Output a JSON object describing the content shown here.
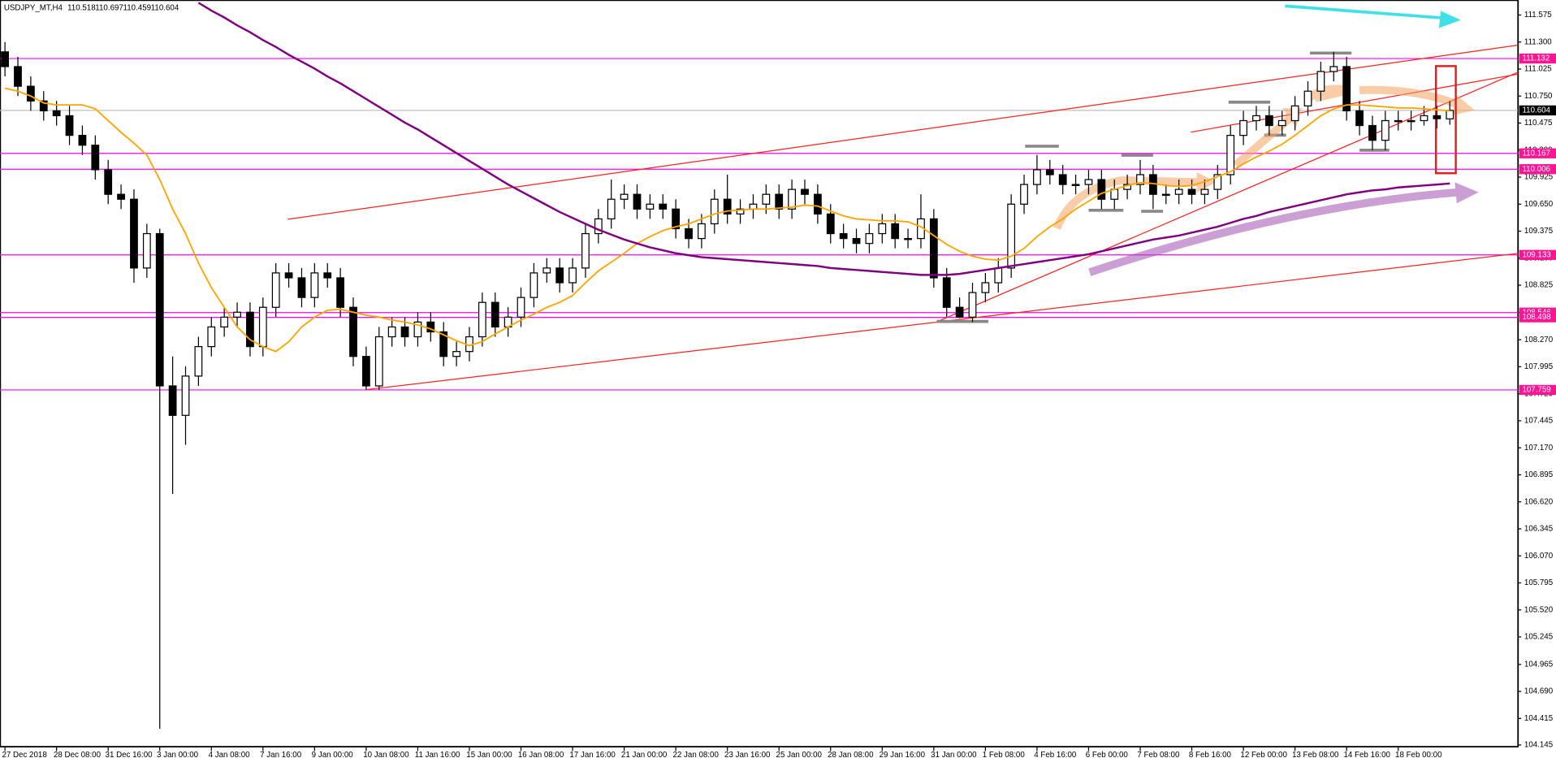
{
  "chart_data": {
    "type": "candlestick",
    "title": "USDJPY_MT,H4",
    "categories": [
      "27 Dec 2018",
      null,
      null,
      null,
      "28 Dec 08:00",
      null,
      null,
      null,
      "31 Dec 16:00",
      null,
      null,
      null,
      "3 Jan 00:00",
      null,
      null,
      null,
      "4 Jan 08:00",
      null,
      null,
      null,
      "7 Jan 16:00",
      null,
      null,
      null,
      "9 Jan 00:00",
      null,
      null,
      null,
      "10 Jan 08:00",
      null,
      null,
      null,
      "11 Jan 16:00",
      null,
      null,
      null,
      "15 Jan 00:00",
      null,
      null,
      null,
      "16 Jan 08:00",
      null,
      null,
      null,
      "17 Jan 16:00",
      null,
      null,
      null,
      "21 Jan 00:00",
      null,
      null,
      null,
      "22 Jan 08:00",
      null,
      null,
      null,
      "23 Jan 16:00",
      null,
      null,
      null,
      "25 Jan 00:00",
      null,
      null,
      null,
      "28 Jan 08:00",
      null,
      null,
      null,
      "29 Jan 16:00",
      null,
      null,
      null,
      "31 Jan 00:00",
      null,
      null,
      null,
      "1 Feb 08:00",
      null,
      null,
      null,
      "4 Feb 16:00",
      null,
      null,
      null,
      "6 Feb 00:00",
      null,
      null,
      null,
      "7 Feb 08:00",
      null,
      null,
      null,
      "8 Feb 16:00",
      null,
      null,
      null,
      "12 Feb 00:00",
      null,
      null,
      null,
      "13 Feb 08:00",
      null,
      null,
      null,
      "14 Feb 16:00",
      null,
      null,
      null,
      "18 Feb 00:00",
      null,
      null,
      null,
      null
    ],
    "open": [
      111.2,
      111.05,
      110.85,
      110.7,
      110.6,
      110.55,
      110.35,
      110.25,
      110.0,
      109.75,
      109.7,
      109.0,
      109.35,
      107.8,
      107.5,
      107.9,
      108.2,
      108.4,
      108.5,
      108.55,
      108.2,
      108.6,
      108.95,
      108.9,
      108.7,
      108.95,
      108.9,
      108.6,
      108.1,
      107.8,
      108.3,
      108.4,
      108.3,
      108.45,
      108.35,
      108.1,
      108.15,
      108.3,
      108.65,
      108.4,
      108.5,
      108.7,
      108.95,
      109.0,
      108.85,
      109.0,
      109.35,
      109.5,
      109.7,
      109.75,
      109.6,
      109.65,
      109.6,
      109.4,
      109.3,
      109.45,
      109.7,
      109.55,
      109.6,
      109.65,
      109.75,
      109.6,
      109.8,
      109.75,
      109.55,
      109.35,
      109.3,
      109.25,
      109.35,
      109.45,
      109.3,
      109.3,
      109.5,
      108.9,
      108.6,
      108.5,
      108.75,
      108.85,
      109.0,
      109.65,
      109.85,
      110.0,
      109.95,
      109.85,
      109.85,
      109.9,
      109.7,
      109.8,
      109.85,
      109.95,
      109.75,
      109.75,
      109.8,
      109.75,
      109.8,
      109.95,
      110.35,
      110.5,
      110.55,
      110.45,
      110.5,
      110.65,
      110.8,
      111.0,
      111.05,
      110.6,
      110.45,
      110.3,
      110.5,
      110.5,
      110.5,
      110.55,
      110.518
    ],
    "high": [
      111.3,
      111.15,
      110.95,
      110.8,
      110.7,
      110.65,
      110.45,
      110.35,
      110.1,
      109.85,
      109.8,
      109.45,
      109.4,
      108.1,
      108.0,
      108.3,
      108.5,
      108.6,
      108.65,
      108.65,
      108.7,
      109.05,
      109.05,
      109.0,
      109.05,
      109.05,
      109.0,
      108.7,
      108.2,
      108.4,
      108.5,
      108.5,
      108.55,
      108.55,
      108.45,
      108.25,
      108.4,
      108.75,
      108.75,
      108.6,
      108.8,
      109.05,
      109.1,
      109.1,
      109.1,
      109.45,
      109.6,
      109.9,
      109.85,
      109.85,
      109.75,
      109.75,
      109.7,
      109.5,
      109.55,
      109.8,
      109.95,
      109.7,
      109.75,
      109.85,
      109.85,
      109.9,
      109.9,
      109.85,
      109.65,
      109.45,
      109.4,
      109.45,
      109.55,
      109.55,
      109.4,
      109.75,
      109.6,
      109.0,
      108.7,
      108.85,
      108.95,
      109.1,
      109.75,
      109.95,
      110.15,
      110.1,
      110.05,
      109.95,
      110.0,
      110.0,
      109.9,
      109.95,
      110.1,
      110.05,
      109.85,
      109.9,
      109.9,
      109.9,
      110.05,
      110.45,
      110.6,
      110.65,
      110.65,
      110.6,
      110.75,
      110.9,
      111.1,
      111.2,
      111.15,
      110.7,
      110.55,
      110.6,
      110.6,
      110.6,
      110.65,
      110.65,
      110.697
    ],
    "low": [
      110.95,
      110.75,
      110.6,
      110.5,
      110.45,
      110.25,
      110.15,
      109.9,
      109.65,
      109.6,
      108.85,
      108.9,
      104.31,
      106.7,
      107.2,
      107.8,
      108.1,
      108.3,
      108.4,
      108.1,
      108.1,
      108.5,
      108.8,
      108.6,
      108.6,
      108.8,
      108.5,
      108.0,
      107.76,
      107.76,
      108.2,
      108.2,
      108.2,
      108.25,
      108.0,
      108.0,
      108.05,
      108.2,
      108.3,
      108.3,
      108.4,
      108.6,
      108.85,
      108.75,
      108.75,
      108.9,
      109.25,
      109.4,
      109.6,
      109.5,
      109.5,
      109.5,
      109.3,
      109.2,
      109.2,
      109.35,
      109.45,
      109.45,
      109.5,
      109.55,
      109.5,
      109.5,
      109.65,
      109.45,
      109.25,
      109.2,
      109.15,
      109.15,
      109.25,
      109.2,
      109.2,
      109.2,
      108.8,
      108.5,
      108.49,
      108.45,
      108.65,
      108.75,
      108.9,
      109.55,
      109.75,
      109.85,
      109.75,
      109.75,
      109.75,
      109.6,
      109.6,
      109.7,
      109.75,
      109.6,
      109.65,
      109.65,
      109.65,
      109.65,
      109.7,
      109.85,
      110.25,
      110.4,
      110.35,
      110.35,
      110.4,
      110.55,
      110.7,
      110.9,
      110.5,
      110.35,
      110.2,
      110.2,
      110.4,
      110.4,
      110.45,
      110.42,
      110.459
    ],
    "close": [
      111.05,
      110.85,
      110.7,
      110.6,
      110.55,
      110.35,
      110.25,
      110.0,
      109.75,
      109.7,
      109.0,
      109.35,
      107.8,
      107.5,
      107.9,
      108.2,
      108.4,
      108.5,
      108.55,
      108.2,
      108.6,
      108.95,
      108.9,
      108.7,
      108.95,
      108.9,
      108.6,
      108.1,
      107.8,
      108.3,
      108.4,
      108.3,
      108.45,
      108.35,
      108.1,
      108.15,
      108.3,
      108.65,
      108.4,
      108.5,
      108.7,
      108.95,
      109.0,
      108.85,
      109.0,
      109.35,
      109.5,
      109.7,
      109.75,
      109.6,
      109.65,
      109.6,
      109.4,
      109.3,
      109.45,
      109.7,
      109.55,
      109.6,
      109.65,
      109.75,
      109.6,
      109.8,
      109.75,
      109.55,
      109.35,
      109.3,
      109.25,
      109.35,
      109.45,
      109.3,
      109.3,
      109.5,
      108.9,
      108.6,
      108.5,
      108.75,
      108.85,
      109.0,
      109.65,
      109.85,
      110.0,
      109.95,
      109.85,
      109.85,
      109.9,
      109.7,
      109.8,
      109.85,
      109.95,
      109.75,
      109.75,
      109.8,
      109.75,
      109.8,
      109.95,
      110.35,
      110.5,
      110.55,
      110.45,
      110.5,
      110.65,
      110.8,
      111.0,
      111.05,
      110.6,
      110.45,
      110.3,
      110.5,
      110.5,
      110.5,
      110.55,
      110.52,
      110.604
    ],
    "up_color": "#ffffff",
    "down_color": "#000000",
    "lines": [
      {
        "color": "#ffa500",
        "values": [
          110.83,
          110.8,
          110.75,
          110.68,
          110.66,
          110.66,
          110.66,
          110.62,
          110.5,
          110.38,
          110.27,
          110.15,
          109.9,
          109.6,
          109.35,
          109.05,
          108.8,
          108.6,
          108.4,
          108.27,
          108.2,
          108.15,
          108.25,
          108.4,
          108.5,
          108.57,
          108.58,
          108.55,
          108.52,
          108.5,
          108.47,
          108.45,
          108.42,
          108.38,
          108.32,
          108.26,
          108.21,
          108.25,
          108.33,
          108.4,
          108.47,
          108.53,
          108.6,
          108.65,
          108.72,
          108.85,
          108.97,
          109.06,
          109.15,
          109.25,
          109.32,
          109.38,
          109.42,
          109.45,
          109.5,
          109.55,
          109.58,
          109.59,
          109.6,
          109.6,
          109.61,
          109.62,
          109.64,
          109.63,
          109.58,
          109.53,
          109.5,
          109.49,
          109.48,
          109.48,
          109.47,
          109.42,
          109.33,
          109.24,
          109.17,
          109.12,
          109.09,
          109.08,
          109.12,
          109.2,
          109.32,
          109.42,
          109.5,
          109.6,
          109.68,
          109.76,
          109.8,
          109.84,
          109.87,
          109.86,
          109.84,
          109.83,
          109.84,
          109.88,
          109.93,
          109.98,
          110.06,
          110.13,
          110.19,
          110.26,
          110.35,
          110.45,
          110.55,
          110.62,
          110.66,
          110.66,
          110.65,
          110.64,
          110.63,
          110.63,
          110.62,
          110.61,
          110.6
        ]
      },
      {
        "color": "#800080",
        "values": [
          null,
          null,
          null,
          null,
          null,
          null,
          null,
          null,
          null,
          null,
          null,
          null,
          null,
          null,
          null,
          111.7,
          111.62,
          111.55,
          111.47,
          111.4,
          111.32,
          111.25,
          111.17,
          111.1,
          111.03,
          110.95,
          110.88,
          110.8,
          110.72,
          110.64,
          110.56,
          110.48,
          110.41,
          110.33,
          110.25,
          110.17,
          110.09,
          110.01,
          109.93,
          109.85,
          109.78,
          109.71,
          109.64,
          109.57,
          109.51,
          109.45,
          109.39,
          109.34,
          109.29,
          109.25,
          109.21,
          109.18,
          109.15,
          109.13,
          109.11,
          109.1,
          109.09,
          109.08,
          109.07,
          109.06,
          109.05,
          109.04,
          109.03,
          109.02,
          109.0,
          108.99,
          108.98,
          108.97,
          108.96,
          108.95,
          108.94,
          108.93,
          108.93,
          108.93,
          108.94,
          108.96,
          108.98,
          109.0,
          109.02,
          109.04,
          109.06,
          109.08,
          109.1,
          109.12,
          109.14,
          109.17,
          109.2,
          109.23,
          109.26,
          109.29,
          109.31,
          109.33,
          109.36,
          109.39,
          109.42,
          109.46,
          109.5,
          109.53,
          109.57,
          109.6,
          109.63,
          109.66,
          109.69,
          109.72,
          109.75,
          109.77,
          109.79,
          109.8,
          109.82,
          109.83,
          109.84,
          109.85,
          109.86
        ]
      }
    ],
    "ylim": [
      104.145,
      111.575
    ],
    "yticks": [
      111.575,
      {
        "value": 111.3,
        "label": "111.300"
      },
      111.025,
      {
        "value": 110.75,
        "label": "110.750"
      },
      110.475,
      {
        "value": 110.2,
        "label": "110.200"
      },
      109.925,
      {
        "value": 109.65,
        "label": "109.650"
      },
      109.375,
      {
        "value": 109.1,
        "label": "109.100"
      },
      108.825,
      {
        "value": 108.55,
        "label": "108.550"
      },
      {
        "value": 108.27,
        "label": "108.270"
      },
      107.995,
      {
        "value": 107.72,
        "label": "107.720"
      },
      107.445,
      {
        "value": 107.17,
        "label": "107.170"
      },
      106.895,
      {
        "value": 106.62,
        "label": "106.620"
      },
      106.345,
      {
        "value": 106.07,
        "label": "106.070"
      },
      105.795,
      {
        "value": 105.52,
        "label": "105.520"
      },
      105.245,
      104.965,
      {
        "value": 104.69,
        "label": "104.690"
      },
      104.415,
      104.145
    ],
    "levels": [
      111.132,
      110.167,
      110.006,
      109.133,
      108.546,
      108.498,
      107.759
    ],
    "level_color": "#ff00ff",
    "level_label_color": "#ff1493",
    "last_price_color": "#c0c0c0",
    "grid": false
  }
}
